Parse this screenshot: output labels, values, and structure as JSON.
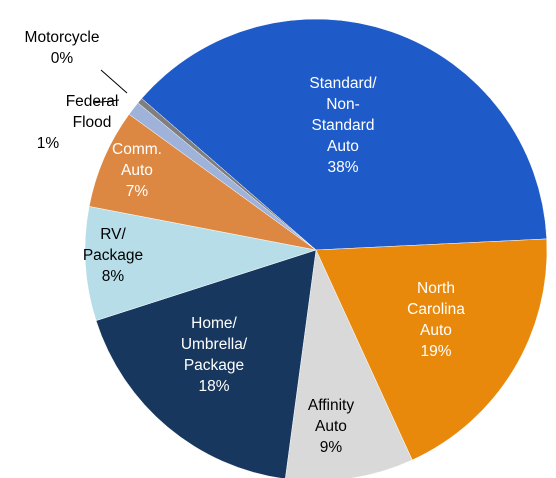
{
  "chart_data": {
    "type": "pie",
    "categories": [
      "Standard/\nNon-\nStandard\nAuto",
      "North\nCarolina\nAuto",
      "Affinity\nAuto",
      "Home/\nUmbrella/\nPackage",
      "RV/\nPackage",
      "Comm.\nAuto",
      "Federal\nFlood",
      "Motorcycle"
    ],
    "values": [
      38,
      19,
      9,
      18,
      8,
      7,
      1,
      0.4
    ],
    "value_labels": [
      "38%",
      "19%",
      "9%",
      "18%",
      "8%",
      "7%",
      "1%",
      "0%"
    ],
    "colors": [
      "#1f5bc8",
      "#e8890c",
      "#d9d9d9",
      "#17375e",
      "#b7dde8",
      "#dd8842",
      "#9fb2da",
      "#7f7f7f"
    ]
  }
}
